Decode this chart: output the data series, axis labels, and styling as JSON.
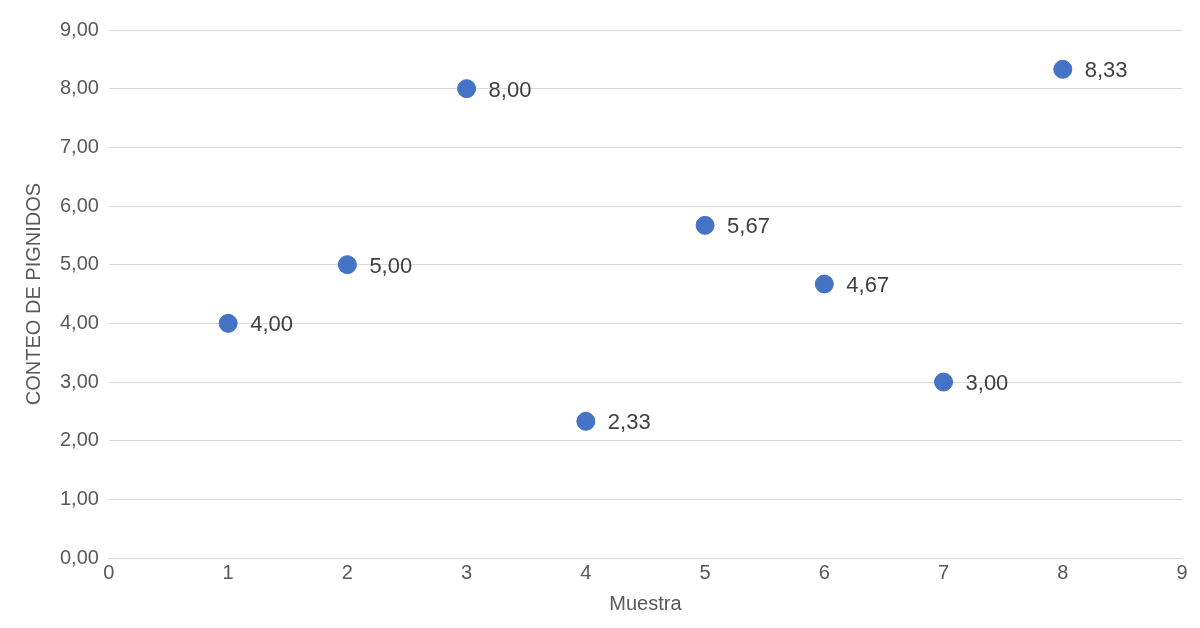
{
  "chart_data": {
    "type": "scatter",
    "xlabel": "Muestra",
    "ylabel": "CONTEO DE PIGNIDOS",
    "x": [
      1,
      2,
      3,
      4,
      5,
      6,
      7,
      8
    ],
    "values": [
      4,
      5,
      8,
      2.33,
      5.67,
      4.67,
      3,
      8.33
    ],
    "value_labels": [
      "4,00",
      "5,00",
      "8,00",
      "2,33",
      "5,67",
      "4,67",
      "3,00",
      "8,33"
    ],
    "color": "#4472c4",
    "marker": "circle",
    "grid": "y",
    "legend": false,
    "xlim": [
      0,
      9
    ],
    "xticks": [
      0,
      1,
      2,
      3,
      4,
      5,
      6,
      7,
      8,
      9
    ],
    "ylim": [
      0,
      9
    ],
    "yticks": [
      {
        "value": 0,
        "label": "0,00"
      },
      {
        "value": 1,
        "label": "1,00"
      },
      {
        "value": 2,
        "label": "2,00"
      },
      {
        "value": 3,
        "label": "3,00"
      },
      {
        "value": 4,
        "label": "4,00"
      },
      {
        "value": 5,
        "label": "5,00"
      },
      {
        "value": 6,
        "label": "6,00"
      },
      {
        "value": 7,
        "label": "7,00"
      },
      {
        "value": 8,
        "label": "8,00"
      },
      {
        "value": 9,
        "label": "9,00"
      }
    ]
  }
}
